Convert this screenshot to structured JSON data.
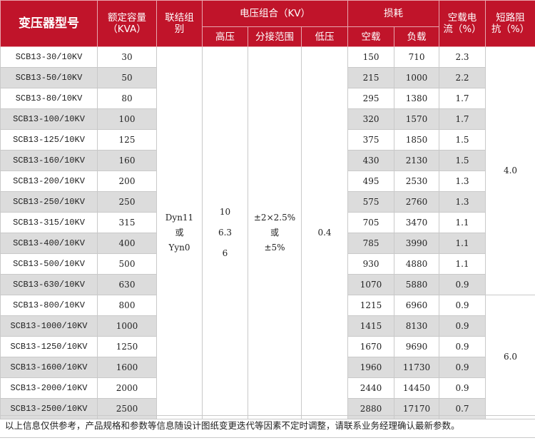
{
  "header": {
    "model": "变压器型号",
    "capacity": [
      "额定容量",
      "（KVA）"
    ],
    "connection": [
      "联结组",
      "别"
    ],
    "voltage_group": "电压组合（KV）",
    "high_voltage": "高压",
    "tap_range": "分接范围",
    "low_voltage": "低压",
    "loss": "损耗",
    "no_load": "空载",
    "load": "负载",
    "no_load_current": [
      "空载电",
      "流（%）"
    ],
    "impedance": [
      "短路阻",
      "抗（%）"
    ]
  },
  "rows": [
    {
      "model": "SCB13-30/10KV",
      "capacity": "30",
      "no_load_loss": "150",
      "load_loss": "710",
      "current": "2.3"
    },
    {
      "model": "SCB13-50/10KV",
      "capacity": "50",
      "no_load_loss": "215",
      "load_loss": "1000",
      "current": "2.2"
    },
    {
      "model": "SCB13-80/10KV",
      "capacity": "80",
      "no_load_loss": "295",
      "load_loss": "1380",
      "current": "1.7"
    },
    {
      "model": "SCB13-100/10KV",
      "capacity": "100",
      "no_load_loss": "320",
      "load_loss": "1570",
      "current": "1.7"
    },
    {
      "model": "SCB13-125/10KV",
      "capacity": "125",
      "no_load_loss": "375",
      "load_loss": "1850",
      "current": "1.5"
    },
    {
      "model": "SCB13-160/10KV",
      "capacity": "160",
      "no_load_loss": "430",
      "load_loss": "2130",
      "current": "1.5"
    },
    {
      "model": "SCB13-200/10KV",
      "capacity": "200",
      "no_load_loss": "495",
      "load_loss": "2530",
      "current": "1.3"
    },
    {
      "model": "SCB13-250/10KV",
      "capacity": "250",
      "no_load_loss": "575",
      "load_loss": "2760",
      "current": "1.3"
    },
    {
      "model": "SCB13-315/10KV",
      "capacity": "315",
      "no_load_loss": "705",
      "load_loss": "3470",
      "current": "1.1"
    },
    {
      "model": "SCB13-400/10KV",
      "capacity": "400",
      "no_load_loss": "785",
      "load_loss": "3990",
      "current": "1.1"
    },
    {
      "model": "SCB13-500/10KV",
      "capacity": "500",
      "no_load_loss": "930",
      "load_loss": "4880",
      "current": "1.1"
    },
    {
      "model": "SCB13-630/10KV",
      "capacity": "630",
      "no_load_loss": "1070",
      "load_loss": "5880",
      "current": "0.9"
    },
    {
      "model": "SCB13-800/10KV",
      "capacity": "800",
      "no_load_loss": "1215",
      "load_loss": "6960",
      "current": "0.9"
    },
    {
      "model": "SCB13-1000/10KV",
      "capacity": "1000",
      "no_load_loss": "1415",
      "load_loss": "8130",
      "current": "0.9"
    },
    {
      "model": "SCB13-1250/10KV",
      "capacity": "1250",
      "no_load_loss": "1670",
      "load_loss": "9690",
      "current": "0.9"
    },
    {
      "model": "SCB13-1600/10KV",
      "capacity": "1600",
      "no_load_loss": "1960",
      "load_loss": "11730",
      "current": "0.9"
    },
    {
      "model": "SCB13-2000/10KV",
      "capacity": "2000",
      "no_load_loss": "2440",
      "load_loss": "14450",
      "current": "0.9"
    },
    {
      "model": "SCB13-2500/10KV",
      "capacity": "2500",
      "no_load_loss": "2880",
      "load_loss": "17170",
      "current": "0.7"
    }
  ],
  "merged": {
    "connection": [
      "Dyn11",
      "或",
      "Yyn0"
    ],
    "high_voltage": [
      "10",
      "6.3",
      "6"
    ],
    "tap_range": [
      "±2×2.5%",
      "或",
      "±5%"
    ],
    "low_voltage": "0.4",
    "impedance_small": "4.0",
    "impedance_large": "6.0"
  },
  "footnote": "以上信息仅供参考，产品规格和参数等信息随设计图纸变更迭代等因素不定时调整，请联系业务经理确认最新参数。"
}
